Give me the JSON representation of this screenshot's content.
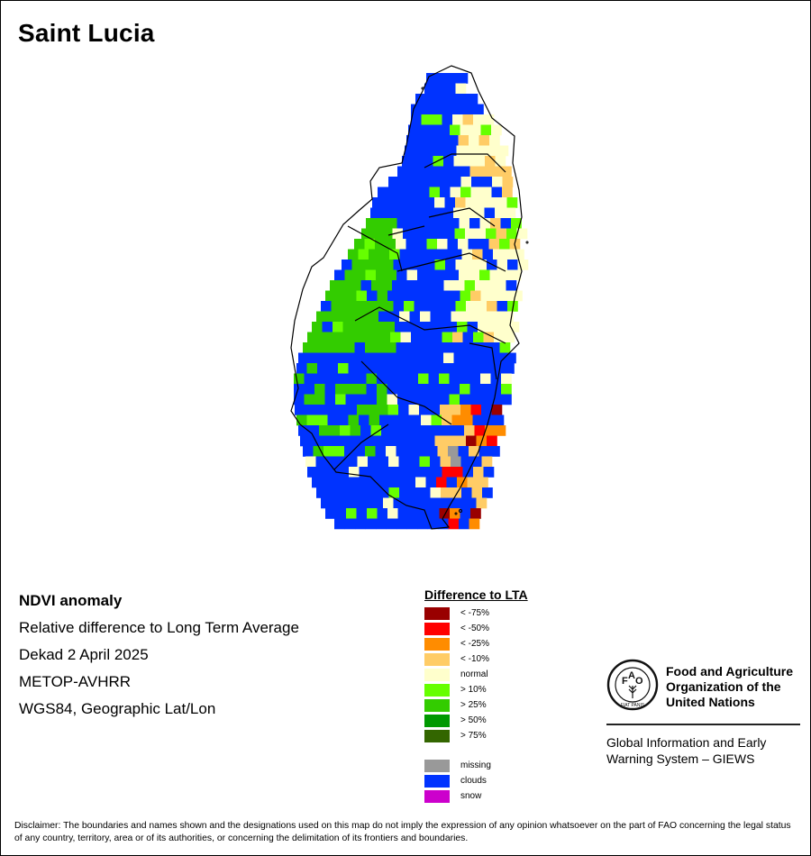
{
  "title": "Saint Lucia",
  "info_lines": [
    "NDVI anomaly",
    "Relative difference to Long Term Average",
    "Dekad 2 April 2025",
    "METOP-AVHRR",
    "WGS84, Geographic Lat/Lon"
  ],
  "legend": {
    "title": "Difference to LTA",
    "classes": [
      {
        "label": "< -75%",
        "color": "#990000"
      },
      {
        "label": "< -50%",
        "color": "#ff0000"
      },
      {
        "label": "< -25%",
        "color": "#ff8c00"
      },
      {
        "label": "< -10%",
        "color": "#ffcc66"
      },
      {
        "label": "normal",
        "color": "#ffffcc"
      },
      {
        "label": "> 10%",
        "color": "#66ff00"
      },
      {
        "label": "> 25%",
        "color": "#33cc00"
      },
      {
        "label": "> 50%",
        "color": "#009900"
      },
      {
        "label": "> 75%",
        "color": "#336600"
      }
    ],
    "extra": [
      {
        "label": "missing",
        "color": "#999999"
      },
      {
        "label": "clouds",
        "color": "#0033ff"
      },
      {
        "label": "snow",
        "color": "#cc00cc"
      }
    ]
  },
  "fao": {
    "name_lines": [
      "Food and Agriculture",
      "Organization of the",
      "United Nations"
    ],
    "emblem_text": "FIAT PANIS",
    "giews_lines": [
      "Global Information and Early",
      "Warning System – GIEWS"
    ]
  },
  "disclaimer": "Disclaimer: The boundaries and names shown and the designations used on this map do not imply the expression of any opinion whatsoever on the part of FAO concerning the legal status of any country, territory, area or of its authorities, or concerning the delimitation of its frontiers and boundaries."
}
